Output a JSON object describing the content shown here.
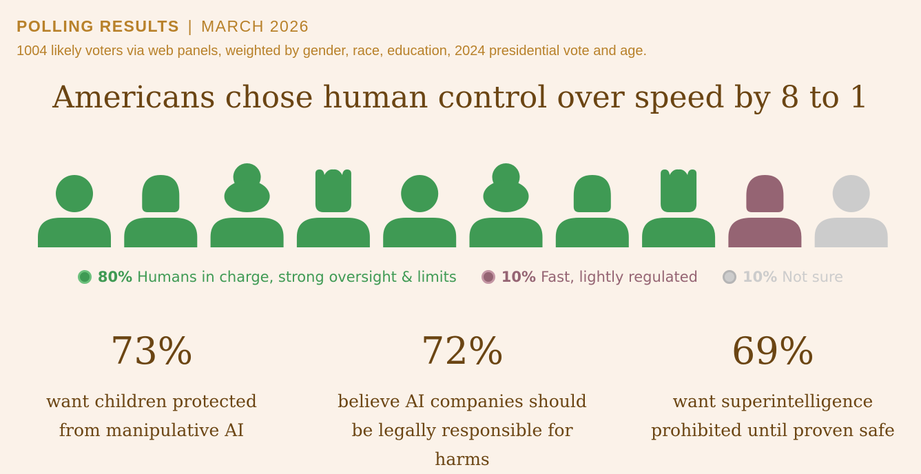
{
  "header": {
    "kicker_strong": "POLLING RESULTS",
    "kicker_sep": "|",
    "kicker_date": "MARCH 2026",
    "subtitle": "1004 likely voters via web panels, weighted by gender, race, education, 2024 presidential vote and age.",
    "headline": "Americans chose human control over speed by 8 to 1"
  },
  "chart_data": {
    "type": "pictogram",
    "series": [
      {
        "pct": "80%",
        "label": "Humans in charge, strong oversight & limits",
        "value": 80,
        "icons": 8,
        "color": "#3f9a54",
        "dot_border": "#6cc07c"
      },
      {
        "pct": "10%",
        "label": "Fast, lightly regulated",
        "value": 10,
        "icons": 1,
        "color": "#956473",
        "dot_border": "#c496a4"
      },
      {
        "pct": "10%",
        "label": "Not sure",
        "value": 10,
        "icons": 1,
        "color": "#cccccc",
        "dot_border": "#b5b5b5"
      }
    ],
    "icon_styles": [
      "round",
      "short",
      "bun",
      "spiky",
      "round",
      "bun",
      "short",
      "spiky",
      "short",
      "round"
    ]
  },
  "stats": [
    {
      "value": "73%",
      "lines": [
        "want children protected",
        "from manipulative AI"
      ]
    },
    {
      "value": "72%",
      "lines": [
        "believe AI companies should",
        "be legally responsible for",
        "harms"
      ]
    },
    {
      "value": "69%",
      "lines": [
        "want superintelligence",
        "prohibited until proven safe"
      ]
    }
  ]
}
